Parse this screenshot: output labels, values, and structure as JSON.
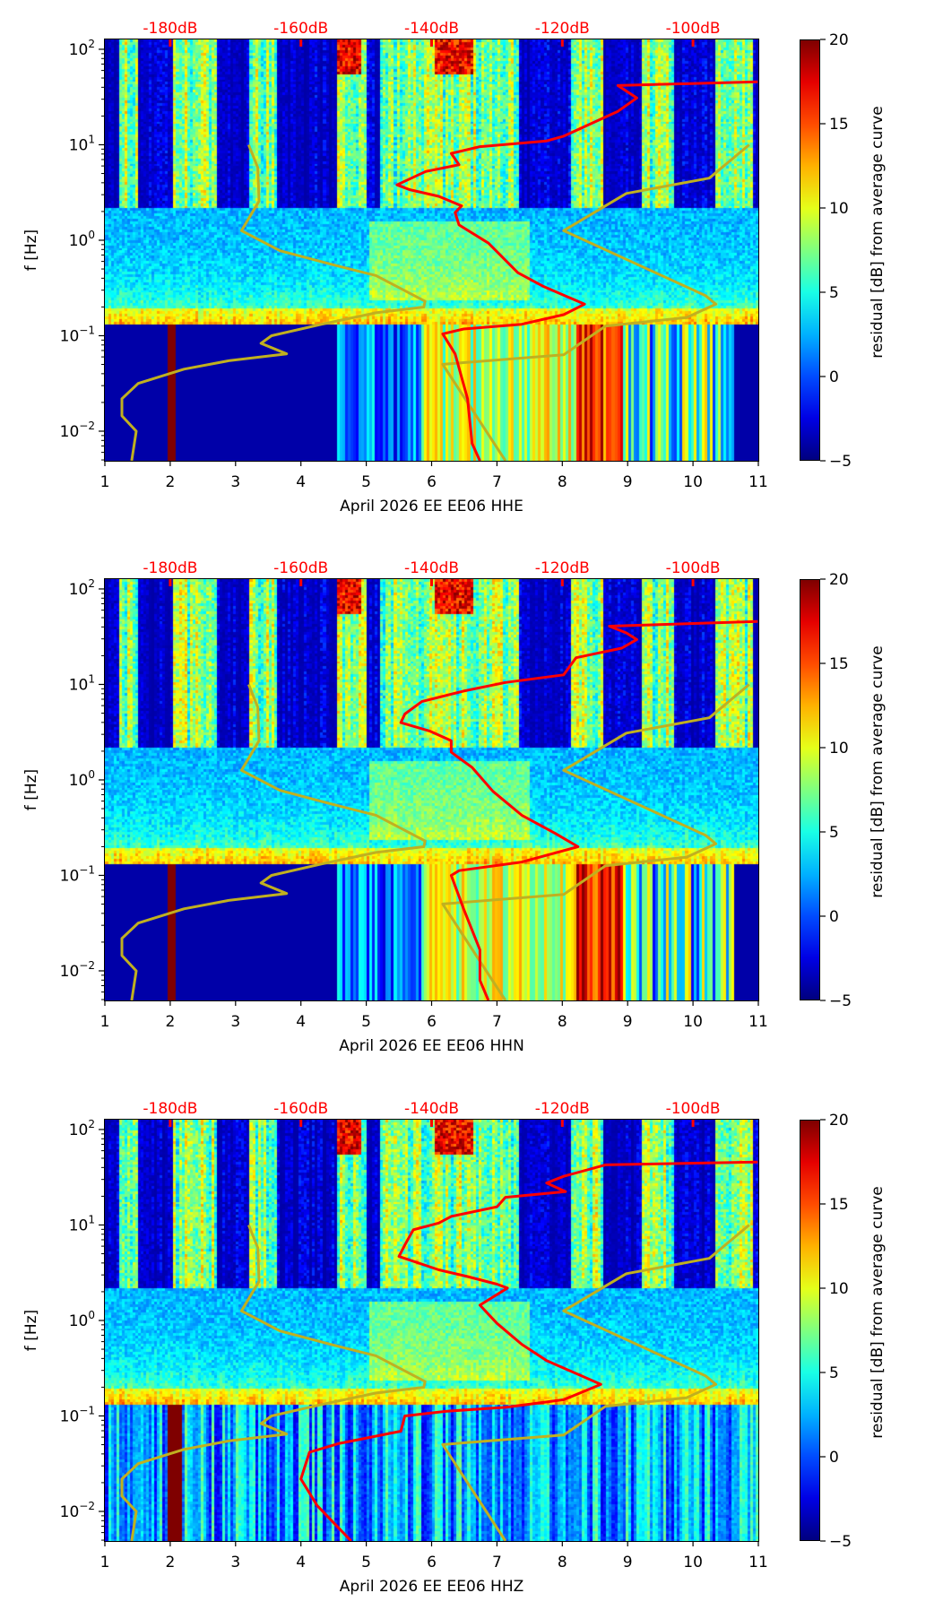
{
  "colors": {
    "model_curve": "#c0b020",
    "station_curve": "#ff0000",
    "db_label": "#ff0000",
    "colormap": "jet"
  },
  "chart_data": [
    {
      "type": "heatmap",
      "title": "",
      "xlabel": "April 2026 EE EE06  HHE",
      "ylabel": "f [Hz]",
      "xlim": [
        1,
        11
      ],
      "ylim": [
        0.005,
        125
      ],
      "yscale": "log",
      "xticks": [
        "1",
        "2",
        "3",
        "4",
        "5",
        "6",
        "7",
        "8",
        "9",
        "10",
        "11"
      ],
      "yticks": [
        {
          "base": "10",
          "exp": "2"
        },
        {
          "base": "10",
          "exp": "1"
        },
        {
          "base": "10",
          "exp": "0"
        },
        {
          "base": "10",
          "exp": "−1"
        },
        {
          "base": "10",
          "exp": "−2"
        }
      ],
      "top_axis": {
        "labels": [
          "-180dB",
          "-160dB",
          "-140dB",
          "-120dB",
          "-100dB"
        ],
        "positions": [
          2,
          4,
          6,
          8,
          10
        ]
      },
      "colorbar": {
        "label": "residual [dB] from average curve",
        "range": [
          -5,
          20
        ],
        "ticks": [
          "20",
          "15",
          "10",
          "5",
          "0",
          "−5"
        ]
      },
      "series": [
        {
          "name": "low noise model",
          "color": "#c0b020",
          "x": [
            3.2,
            3.34,
            3.36,
            3.09,
            3.68,
            4.45,
            5.15,
            5.9,
            5.88,
            5.15,
            4.32,
            3.55,
            3.39,
            3.78,
            2.91,
            2.21,
            1.51,
            1.26,
            1.26,
            1.48,
            1.41
          ],
          "logf": [
            1.0,
            0.76,
            0.41,
            0.1,
            -0.11,
            -0.25,
            -0.37,
            -0.64,
            -0.7,
            -0.76,
            -0.88,
            -1.0,
            -1.08,
            -1.19,
            -1.26,
            -1.35,
            -1.5,
            -1.66,
            -1.84,
            -2.0,
            -2.31
          ]
        },
        {
          "name": "high noise model",
          "color": "#c0b020",
          "x": [
            10.86,
            10.25,
            8.98,
            8.02,
            10.19,
            10.35,
            9.9,
            8.66,
            8.02,
            6.17,
            7.13
          ],
          "logf": [
            1.0,
            0.65,
            0.49,
            0.1,
            -0.58,
            -0.67,
            -0.81,
            -0.9,
            -1.2,
            -1.3,
            -2.31
          ]
        },
        {
          "name": "station average",
          "color": "#ff0000",
          "x": [
            10.99,
            8.85,
            9.14,
            8.85,
            8.02,
            7.76,
            6.74,
            6.3,
            6.42,
            5.91,
            5.47,
            5.66,
            6.11,
            6.46,
            6.36,
            6.42,
            6.87,
            7.32,
            7.7,
            8.34,
            8.02,
            7.38,
            6.49,
            6.17,
            6.36,
            6.55,
            6.62,
            6.74
          ],
          "logf": [
            1.66,
            1.62,
            1.49,
            1.35,
            1.09,
            1.04,
            0.98,
            0.91,
            0.79,
            0.72,
            0.58,
            0.53,
            0.46,
            0.36,
            0.29,
            0.16,
            -0.03,
            -0.34,
            -0.48,
            -0.67,
            -0.78,
            -0.88,
            -0.93,
            -0.98,
            -1.19,
            -1.66,
            -2.13,
            -2.31
          ]
        }
      ]
    },
    {
      "type": "heatmap",
      "title": "",
      "xlabel": "April 2026 EE EE06  HHN",
      "ylabel": "f [Hz]",
      "xlim": [
        1,
        11
      ],
      "ylim": [
        0.005,
        125
      ],
      "yscale": "log",
      "xticks": [
        "1",
        "2",
        "3",
        "4",
        "5",
        "6",
        "7",
        "8",
        "9",
        "10",
        "11"
      ],
      "yticks": [
        {
          "base": "10",
          "exp": "2"
        },
        {
          "base": "10",
          "exp": "1"
        },
        {
          "base": "10",
          "exp": "0"
        },
        {
          "base": "10",
          "exp": "−1"
        },
        {
          "base": "10",
          "exp": "−2"
        }
      ],
      "top_axis": {
        "labels": [
          "-180dB",
          "-160dB",
          "-140dB",
          "-120dB",
          "-100dB"
        ],
        "positions": [
          2,
          4,
          6,
          8,
          10
        ]
      },
      "colorbar": {
        "label": "residual [dB] from average curve",
        "range": [
          -5,
          20
        ],
        "ticks": [
          "20",
          "15",
          "10",
          "5",
          "0",
          "−5"
        ]
      },
      "series": [
        {
          "name": "low noise model",
          "color": "#c0b020",
          "x": [
            3.2,
            3.34,
            3.36,
            3.09,
            3.68,
            4.45,
            5.15,
            5.9,
            5.88,
            5.15,
            4.32,
            3.55,
            3.39,
            3.78,
            2.91,
            2.21,
            1.51,
            1.26,
            1.26,
            1.48,
            1.41
          ],
          "logf": [
            1.0,
            0.76,
            0.41,
            0.1,
            -0.11,
            -0.25,
            -0.37,
            -0.64,
            -0.7,
            -0.76,
            -0.88,
            -1.0,
            -1.08,
            -1.19,
            -1.26,
            -1.35,
            -1.5,
            -1.66,
            -1.84,
            -2.0,
            -2.31
          ]
        },
        {
          "name": "high noise model",
          "color": "#c0b020",
          "x": [
            10.86,
            10.25,
            8.98,
            8.02,
            10.19,
            10.35,
            9.9,
            8.66,
            8.02,
            6.17,
            7.13
          ],
          "logf": [
            1.0,
            0.65,
            0.49,
            0.1,
            -0.58,
            -0.67,
            -0.81,
            -0.9,
            -1.2,
            -1.3,
            -2.31
          ]
        },
        {
          "name": "station average",
          "color": "#ff0000",
          "x": [
            10.99,
            8.72,
            8.98,
            9.14,
            8.91,
            8.21,
            8.02,
            7.13,
            6.49,
            5.85,
            5.59,
            5.53,
            5.98,
            6.3,
            6.3,
            6.62,
            6.94,
            7.38,
            7.89,
            8.24,
            7.38,
            6.42,
            6.3,
            6.49,
            6.74,
            6.74,
            6.87
          ],
          "logf": [
            1.66,
            1.61,
            1.54,
            1.47,
            1.38,
            1.28,
            1.1,
            1.02,
            0.93,
            0.82,
            0.69,
            0.6,
            0.51,
            0.41,
            0.29,
            0.13,
            -0.12,
            -0.37,
            -0.56,
            -0.7,
            -0.86,
            -0.95,
            -1.0,
            -1.35,
            -1.78,
            -2.1,
            -2.31
          ]
        }
      ]
    },
    {
      "type": "heatmap",
      "title": "",
      "xlabel": "April 2026 EE EE06  HHZ",
      "ylabel": "f [Hz]",
      "xlim": [
        1,
        11
      ],
      "ylim": [
        0.005,
        125
      ],
      "yscale": "log",
      "xticks": [
        "1",
        "2",
        "3",
        "4",
        "5",
        "6",
        "7",
        "8",
        "9",
        "10",
        "11"
      ],
      "yticks": [
        {
          "base": "10",
          "exp": "2"
        },
        {
          "base": "10",
          "exp": "1"
        },
        {
          "base": "10",
          "exp": "0"
        },
        {
          "base": "10",
          "exp": "−1"
        },
        {
          "base": "10",
          "exp": "−2"
        }
      ],
      "top_axis": {
        "labels": [
          "-180dB",
          "-160dB",
          "-140dB",
          "-120dB",
          "-100dB"
        ],
        "positions": [
          2,
          4,
          6,
          8,
          10
        ]
      },
      "colorbar": {
        "label": "residual [dB] from average curve",
        "range": [
          -5,
          20
        ],
        "ticks": [
          "20",
          "15",
          "10",
          "5",
          "0",
          "−5"
        ]
      },
      "series": [
        {
          "name": "low noise model",
          "color": "#c0b020",
          "x": [
            3.2,
            3.34,
            3.36,
            3.09,
            3.68,
            4.45,
            5.15,
            5.9,
            5.88,
            5.15,
            4.32,
            3.55,
            3.39,
            3.78,
            2.91,
            2.21,
            1.51,
            1.26,
            1.26,
            1.48,
            1.41
          ],
          "logf": [
            1.0,
            0.76,
            0.41,
            0.1,
            -0.11,
            -0.25,
            -0.37,
            -0.64,
            -0.7,
            -0.76,
            -0.88,
            -1.0,
            -1.08,
            -1.19,
            -1.26,
            -1.35,
            -1.5,
            -1.66,
            -1.84,
            -2.0,
            -2.31
          ]
        },
        {
          "name": "high noise model",
          "color": "#c0b020",
          "x": [
            10.86,
            10.25,
            8.98,
            8.02,
            10.19,
            10.35,
            9.9,
            8.66,
            8.02,
            6.17,
            7.13
          ],
          "logf": [
            1.0,
            0.65,
            0.49,
            0.1,
            -0.58,
            -0.67,
            -0.81,
            -0.9,
            -1.2,
            -1.3,
            -2.31
          ]
        },
        {
          "name": "station average",
          "color": "#ff0000",
          "x": [
            10.99,
            8.66,
            8.02,
            7.76,
            8.05,
            7.13,
            7.0,
            6.3,
            6.11,
            5.72,
            5.59,
            5.5,
            6.11,
            6.55,
            7.0,
            7.16,
            6.74,
            7.0,
            7.38,
            7.76,
            8.59,
            8.02,
            7.13,
            6.23,
            5.59,
            5.53,
            4.57,
            4.13,
            4.0,
            4.25,
            4.77
          ],
          "logf": [
            1.66,
            1.63,
            1.51,
            1.44,
            1.35,
            1.29,
            1.19,
            1.09,
            1.02,
            0.95,
            0.79,
            0.67,
            0.53,
            0.46,
            0.38,
            0.34,
            0.16,
            -0.03,
            -0.25,
            -0.42,
            -0.67,
            -0.83,
            -0.91,
            -0.95,
            -1.0,
            -1.16,
            -1.29,
            -1.38,
            -1.66,
            -1.94,
            -2.31
          ]
        }
      ]
    }
  ]
}
